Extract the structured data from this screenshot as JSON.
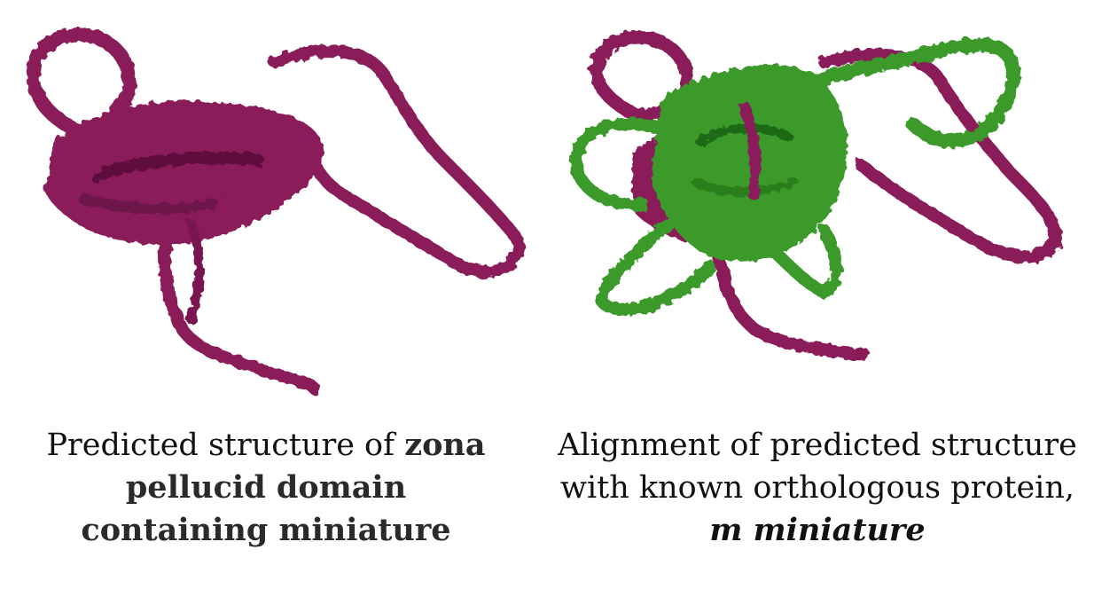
{
  "left": {
    "caption_plain": "Predicted structure of ",
    "caption_bold_1": "zona",
    "caption_bold_2": "pellucid domain",
    "caption_bold_3": "containing miniature"
  },
  "right": {
    "caption_line_1": "Alignment of predicted structure",
    "caption_line_2": "with known orthologous protein,",
    "caption_bold_italic": "m miniature"
  },
  "colors": {
    "predicted_protein": "#8b1a5a",
    "predicted_protein_dark": "#5e0f3c",
    "ortholog_protein": "#3a9a2a",
    "ortholog_protein_dark": "#1f6b14"
  }
}
